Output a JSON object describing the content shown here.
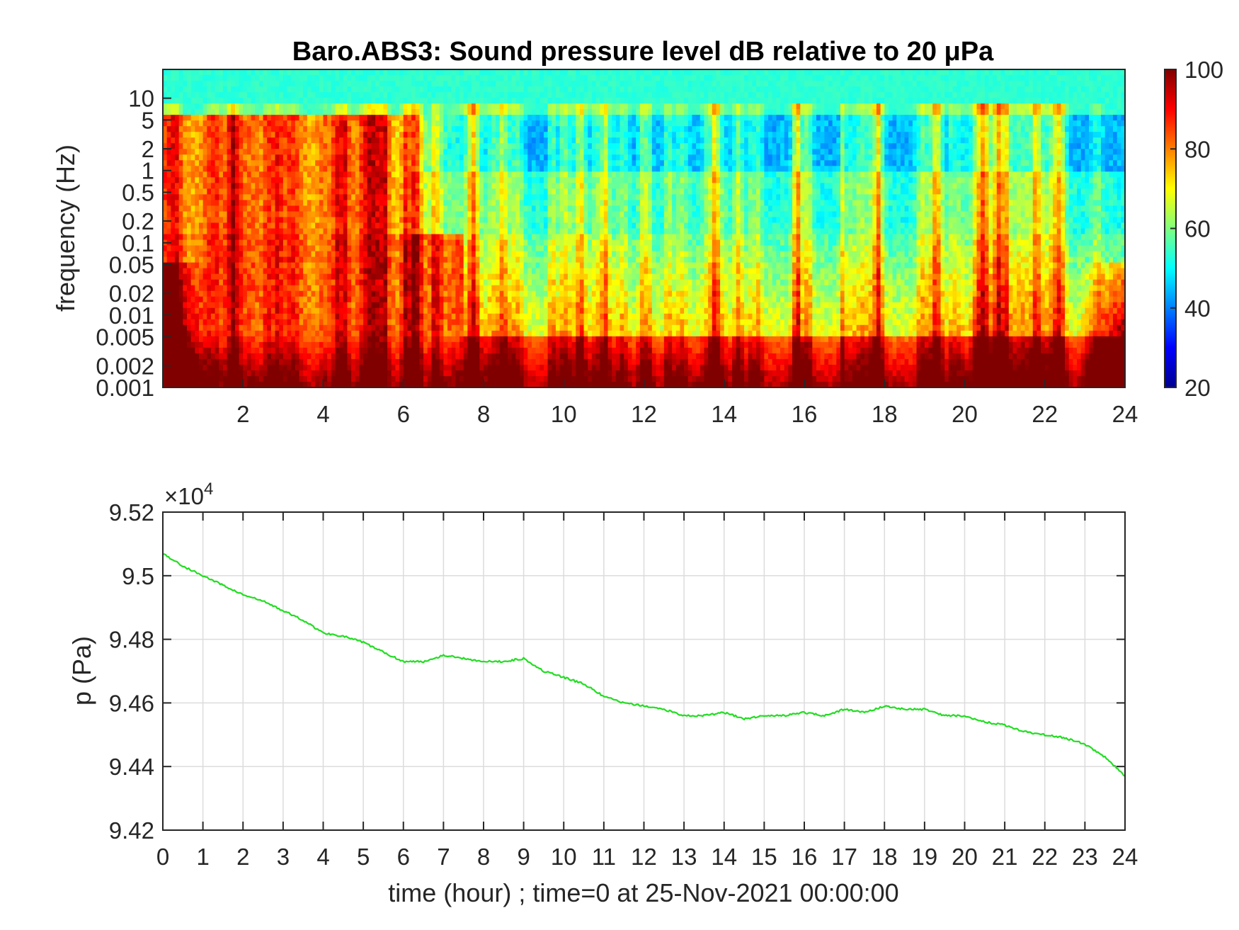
{
  "colors": {
    "line": "#22dd22",
    "grid": "#dcdcdc",
    "axis": "#262626"
  },
  "chart_data": [
    {
      "type": "heatmap",
      "title": "Baro.ABS3: Sound pressure level dB relative to 20 μPa",
      "ylabel": "frequency (Hz)",
      "xlim": [
        0,
        24
      ],
      "x_ticks": [
        2,
        4,
        6,
        8,
        10,
        12,
        14,
        16,
        18,
        20,
        22,
        24
      ],
      "y_scale": "log",
      "ylim": [
        0.001,
        25
      ],
      "y_ticks": [
        {
          "value": 10,
          "label": "10"
        },
        {
          "value": 5,
          "label": "5"
        },
        {
          "value": 2,
          "label": "2"
        },
        {
          "value": 1,
          "label": "1"
        },
        {
          "value": 0.5,
          "label": "0.5"
        },
        {
          "value": 0.2,
          "label": "0.2"
        },
        {
          "value": 0.1,
          "label": "0.1"
        },
        {
          "value": 0.05,
          "label": "0.05"
        },
        {
          "value": 0.02,
          "label": "0.02"
        },
        {
          "value": 0.01,
          "label": "0.01"
        },
        {
          "value": 0.005,
          "label": "0.005"
        },
        {
          "value": 0.002,
          "label": "0.002"
        },
        {
          "value": 0.001,
          "label": "0.001"
        }
      ],
      "colormap": "jet",
      "colorbar": {
        "range": [
          20,
          100
        ],
        "ticks": [
          20,
          40,
          60,
          80,
          100
        ]
      },
      "grid": false
    },
    {
      "type": "line",
      "ylabel": "p (Pa)",
      "xlabel": "time (hour) ; time=0 at 25-Nov-2021 00:00:00",
      "xlim": [
        0,
        24
      ],
      "ylim": [
        94200,
        95200
      ],
      "y_exponent_label": "×10",
      "y_exponent_value": "4",
      "x_ticks": [
        0,
        1,
        2,
        3,
        4,
        5,
        6,
        7,
        8,
        9,
        10,
        11,
        12,
        13,
        14,
        15,
        16,
        17,
        18,
        19,
        20,
        21,
        22,
        23,
        24
      ],
      "y_ticks": [
        {
          "value": 94200,
          "label": "9.42"
        },
        {
          "value": 94400,
          "label": "9.44"
        },
        {
          "value": 94600,
          "label": "9.46"
        },
        {
          "value": 94800,
          "label": "9.48"
        },
        {
          "value": 95000,
          "label": "9.5"
        },
        {
          "value": 95200,
          "label": "9.52"
        }
      ],
      "grid": true,
      "series": [
        {
          "x": [
            0,
            0.5,
            1,
            1.5,
            2,
            2.5,
            3,
            3.5,
            4,
            4.5,
            5,
            5.5,
            6,
            6.5,
            7,
            7.5,
            8,
            8.5,
            9,
            9.5,
            10,
            10.5,
            11,
            11.5,
            12,
            12.5,
            13,
            13.5,
            14,
            14.5,
            15,
            15.5,
            16,
            16.5,
            17,
            17.5,
            18,
            18.5,
            19,
            19.5,
            20,
            20.5,
            21,
            21.5,
            22,
            22.5,
            23,
            23.5,
            24
          ],
          "y": [
            95070,
            95030,
            95000,
            94970,
            94940,
            94920,
            94890,
            94860,
            94820,
            94810,
            94790,
            94760,
            94730,
            94730,
            94750,
            94740,
            94730,
            94730,
            94740,
            94700,
            94680,
            94660,
            94620,
            94600,
            94590,
            94580,
            94560,
            94560,
            94570,
            94550,
            94560,
            94560,
            94570,
            94560,
            94580,
            94570,
            94590,
            94580,
            94580,
            94560,
            94560,
            94540,
            94530,
            94510,
            94500,
            94490,
            94470,
            94430,
            94370
          ]
        }
      ]
    }
  ]
}
